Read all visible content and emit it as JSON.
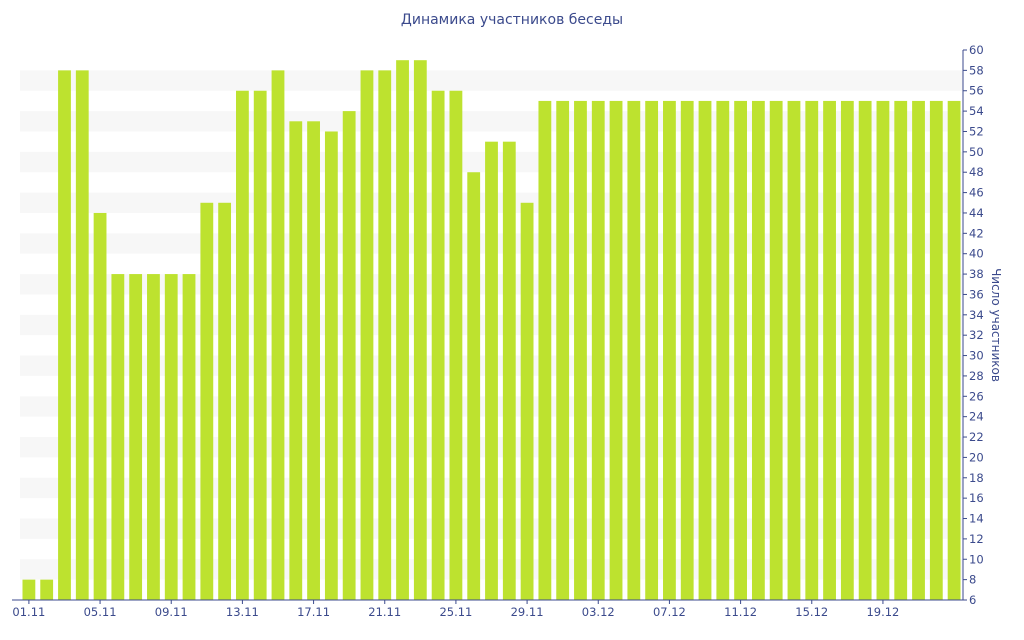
{
  "chart_data": {
    "type": "bar",
    "title": "Динамика участников беседы",
    "xlabel": "",
    "ylabel": "Число участников",
    "ylim": [
      6,
      60
    ],
    "y_ticks": [
      6,
      8,
      10,
      12,
      14,
      16,
      18,
      20,
      22,
      24,
      26,
      28,
      30,
      32,
      34,
      36,
      38,
      40,
      42,
      44,
      46,
      48,
      50,
      52,
      54,
      56,
      58,
      60
    ],
    "y_axis_side": "right",
    "grid": "alternating horizontal bands",
    "bar_color": "#bde22f",
    "band_color": "#f7f7f7",
    "axis_color": "#3b4a8c",
    "categories": [
      "01.11",
      "02.11",
      "03.11",
      "04.11",
      "05.11",
      "06.11",
      "07.11",
      "08.11",
      "09.11",
      "10.11",
      "11.11",
      "12.11",
      "13.11",
      "14.11",
      "15.11",
      "16.11",
      "17.11",
      "18.11",
      "19.11",
      "20.11",
      "21.11",
      "22.11",
      "23.11",
      "24.11",
      "25.11",
      "26.11",
      "27.11",
      "28.11",
      "29.11",
      "30.11",
      "01.12",
      "02.12",
      "03.12",
      "04.12",
      "05.12",
      "06.12",
      "07.12",
      "08.12",
      "09.12",
      "10.12",
      "11.12",
      "12.12",
      "13.12",
      "14.12",
      "15.12",
      "16.12",
      "17.12",
      "18.12",
      "19.12",
      "20.12",
      "21.12",
      "22.12",
      "23.12"
    ],
    "x_tick_labels": [
      "01.11",
      "05.11",
      "09.11",
      "13.11",
      "17.11",
      "21.11",
      "25.11",
      "29.11",
      "03.12",
      "07.12",
      "11.12",
      "15.12",
      "19.12"
    ],
    "values": [
      8,
      8,
      58,
      58,
      44,
      38,
      38,
      38,
      38,
      38,
      45,
      45,
      56,
      56,
      58,
      53,
      53,
      52,
      54,
      58,
      58,
      59,
      59,
      56,
      56,
      48,
      51,
      51,
      45,
      55,
      55,
      55,
      55,
      55,
      55,
      55,
      55,
      55,
      55,
      55,
      55,
      55,
      55,
      55,
      55,
      55,
      55,
      55,
      55,
      55,
      55,
      55,
      55
    ]
  }
}
